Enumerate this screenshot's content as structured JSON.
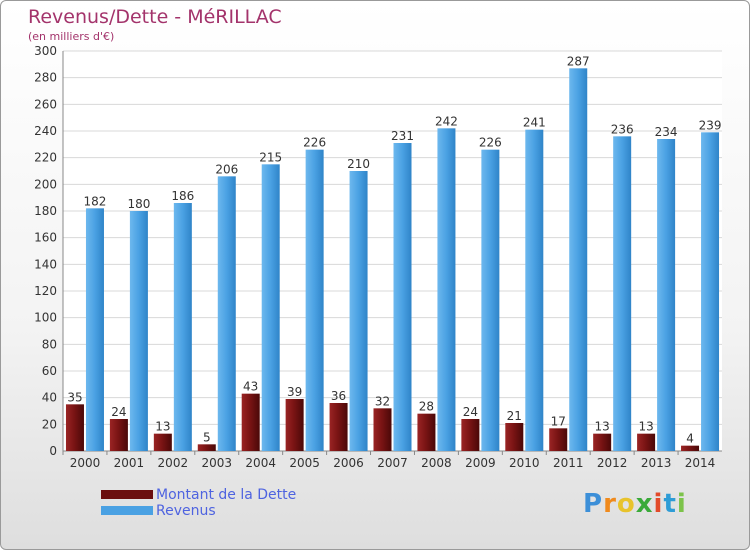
{
  "header": {
    "title": "Revenus/Dette - MéRILLAC",
    "subtitle": "(en milliers d'€)"
  },
  "colors": {
    "debt": "#7a1414",
    "revenue": "#4aa1e3",
    "title": "#a3336b",
    "legend_text": "#4e63e0"
  },
  "legend": {
    "items": [
      {
        "label": "Montant de la Dette",
        "color": "#6b0f0f"
      },
      {
        "label": "Revenus",
        "color": "#4aa1e3"
      }
    ]
  },
  "logo": {
    "text": "Proxiti",
    "letter_colors": [
      "#3c8fd8",
      "#f08a1c",
      "#e8c32c",
      "#3aaa3a",
      "#e24a2a",
      "#2e9cd6",
      "#7cc34a"
    ]
  },
  "chart_data": {
    "type": "bar",
    "categories": [
      "2000",
      "2001",
      "2002",
      "2003",
      "2004",
      "2005",
      "2006",
      "2007",
      "2008",
      "2009",
      "2010",
      "2011",
      "2012",
      "2013",
      "2014"
    ],
    "series": [
      {
        "name": "Montant de la Dette",
        "values": [
          35,
          24,
          13,
          5,
          43,
          39,
          36,
          32,
          28,
          24,
          21,
          17,
          13,
          13,
          4
        ]
      },
      {
        "name": "Revenus",
        "values": [
          182,
          180,
          186,
          206,
          215,
          226,
          210,
          231,
          242,
          226,
          241,
          287,
          236,
          234,
          239
        ]
      }
    ],
    "ylim": [
      0,
      300
    ],
    "yticks": [
      0,
      20,
      40,
      60,
      80,
      100,
      120,
      140,
      160,
      180,
      200,
      220,
      240,
      260,
      280,
      300
    ],
    "grid": true,
    "legend_position": "bottom-left"
  }
}
